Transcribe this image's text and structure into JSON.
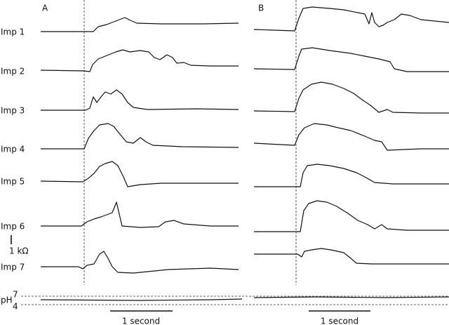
{
  "panels": [
    {
      "label": "A",
      "time_scale": "1 second"
    },
    {
      "label": "B",
      "time_scale": "1 second"
    }
  ],
  "rows": [
    "Imp 1",
    "Imp 2",
    "Imp 3",
    "Imp 4",
    "Imp 5",
    "Imp 6",
    "Imp 7",
    "pH"
  ],
  "ph_ticks": [
    "7",
    "4"
  ],
  "impedance_scale": "1 kΩ"
}
